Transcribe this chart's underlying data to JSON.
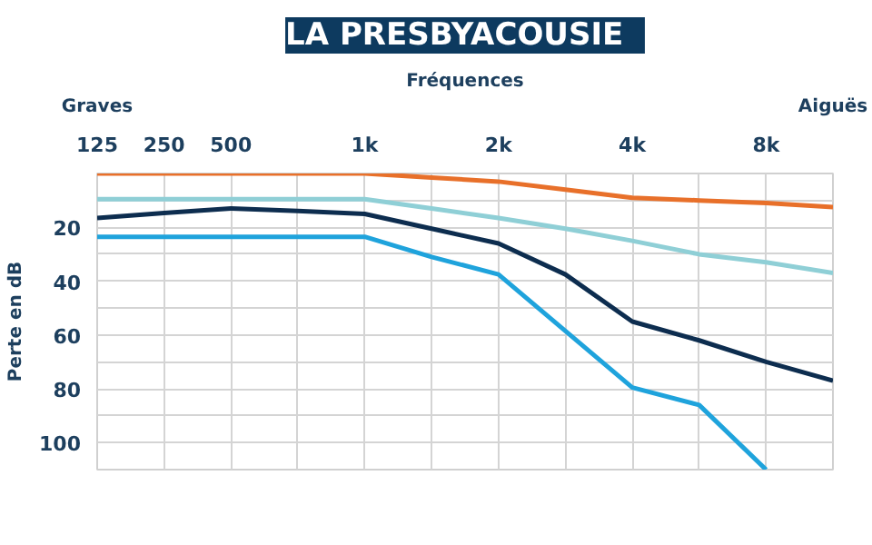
{
  "chart_data": {
    "type": "line",
    "title": "LA PRESBYACOUSIE",
    "xlabel": "Fréquences",
    "ylabel": "Perte en dB",
    "annotations": [
      "Graves",
      "Aiguës"
    ],
    "categories": [
      "125",
      "250",
      "500",
      null,
      "1k",
      null,
      "2k",
      null,
      "4k",
      null,
      "8k",
      null
    ],
    "ylim": [
      110,
      0
    ],
    "yticks": [
      {
        "value": 10,
        "label": null
      },
      20,
      {
        "value": 30,
        "label": null
      },
      40,
      {
        "value": 50,
        "label": null
      },
      60,
      {
        "value": 70,
        "label": null
      },
      80,
      {
        "value": 90,
        "label": null
      },
      100
    ],
    "grid": true,
    "line_style": "solid",
    "series": [
      {
        "color": "#e8702a",
        "values": [
          0,
          0,
          0,
          0,
          0,
          1.5,
          3,
          6,
          9,
          10,
          11,
          12.5
        ]
      },
      {
        "color": "#8fcfd6",
        "values": [
          9.5,
          9.5,
          9.5,
          9.5,
          9.5,
          13,
          16.5,
          20.5,
          25,
          30,
          33,
          37
        ]
      },
      {
        "color": "#0d2d4f",
        "values": [
          16.5,
          14.7,
          13,
          13.9,
          15,
          20.5,
          26,
          37.5,
          55,
          62,
          70,
          77
        ]
      },
      {
        "color": "#1fa3dc",
        "values": [
          23.5,
          23.5,
          23.5,
          23.5,
          23.5,
          31,
          37.5,
          58.5,
          79.5,
          86,
          110,
          null
        ]
      }
    ]
  }
}
